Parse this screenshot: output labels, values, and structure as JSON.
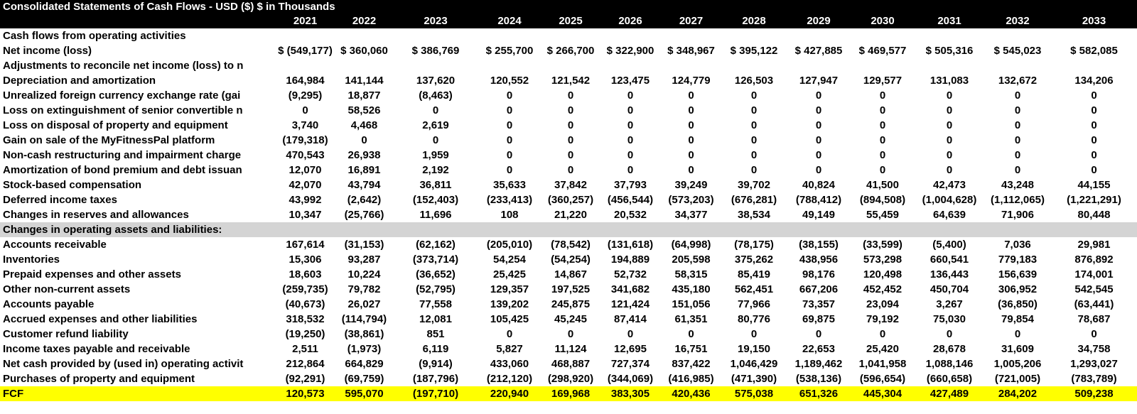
{
  "title": "Consolidated Statements of Cash Flows - USD ($) $ in Thousands",
  "years": [
    "2021",
    "2022",
    "2023",
    "2024",
    "2025",
    "2026",
    "2027",
    "2028",
    "2029",
    "2030",
    "2031",
    "2032",
    "2033"
  ],
  "rows": [
    {
      "label": "Cash flows from operating activities",
      "values": [
        "",
        "",
        "",
        "",
        "",
        "",
        "",
        "",
        "",
        "",
        "",
        "",
        ""
      ]
    },
    {
      "label": "Net income (loss)",
      "values": [
        "$ (549,177)",
        "$ 360,060",
        "$ 386,769",
        "$ 255,700",
        "$ 266,700",
        "$ 322,900",
        "$ 348,967",
        "$ 395,122",
        "$ 427,885",
        "$ 469,577",
        "$ 505,316",
        "$ 545,023",
        "$ 582,085"
      ]
    },
    {
      "label": "Adjustments to reconcile net income (loss) to n",
      "values": [
        "",
        "",
        "",
        "",
        "",
        "",
        "",
        "",
        "",
        "",
        "",
        "",
        ""
      ]
    },
    {
      "label": "Depreciation and amortization",
      "values": [
        "164,984",
        "141,144",
        "137,620",
        "120,552",
        "121,542",
        "123,475",
        "124,779",
        "126,503",
        "127,947",
        "129,577",
        "131,083",
        "132,672",
        "134,206"
      ]
    },
    {
      "label": "Unrealized foreign currency exchange rate (gai",
      "values": [
        "(9,295)",
        "18,877",
        "(8,463)",
        "0",
        "0",
        "0",
        "0",
        "0",
        "0",
        "0",
        "0",
        "0",
        "0"
      ]
    },
    {
      "label": "Loss on extinguishment of senior convertible n",
      "values": [
        "0",
        "58,526",
        "0",
        "0",
        "0",
        "0",
        "0",
        "0",
        "0",
        "0",
        "0",
        "0",
        "0"
      ]
    },
    {
      "label": "Loss on disposal of property and equipment",
      "values": [
        "3,740",
        "4,468",
        "2,619",
        "0",
        "0",
        "0",
        "0",
        "0",
        "0",
        "0",
        "0",
        "0",
        "0"
      ]
    },
    {
      "label": "Gain on sale of the MyFitnessPal platform",
      "values": [
        "(179,318)",
        "0",
        "0",
        "0",
        "0",
        "0",
        "0",
        "0",
        "0",
        "0",
        "0",
        "0",
        "0"
      ]
    },
    {
      "label": "Non-cash restructuring and impairment charge",
      "values": [
        "470,543",
        "26,938",
        "1,959",
        "0",
        "0",
        "0",
        "0",
        "0",
        "0",
        "0",
        "0",
        "0",
        "0"
      ]
    },
    {
      "label": "Amortization of bond premium and debt issuan",
      "values": [
        "12,070",
        "16,891",
        "2,192",
        "0",
        "0",
        "0",
        "0",
        "0",
        "0",
        "0",
        "0",
        "0",
        "0"
      ]
    },
    {
      "label": "Stock-based compensation",
      "values": [
        "42,070",
        "43,794",
        "36,811",
        "35,633",
        "37,842",
        "37,793",
        "39,249",
        "39,702",
        "40,824",
        "41,500",
        "42,473",
        "43,248",
        "44,155"
      ]
    },
    {
      "label": "Deferred income taxes",
      "values": [
        "43,992",
        "(2,642)",
        "(152,403)",
        "(233,413)",
        "(360,257)",
        "(456,544)",
        "(573,203)",
        "(676,281)",
        "(788,412)",
        "(894,508)",
        "(1,004,628)",
        "(1,112,065)",
        "(1,221,291)"
      ]
    },
    {
      "label": "Changes in reserves and allowances",
      "values": [
        "10,347",
        "(25,766)",
        "11,696",
        "108",
        "21,220",
        "20,532",
        "34,377",
        "38,534",
        "49,149",
        "55,459",
        "64,639",
        "71,906",
        "80,448"
      ]
    },
    {
      "label": "Changes in operating assets and liabilities:",
      "values": [
        "",
        "",
        "",
        "",
        "",
        "",
        "",
        "",
        "",
        "",
        "",
        "",
        ""
      ],
      "style": "grey"
    },
    {
      "label": "Accounts receivable",
      "values": [
        "167,614",
        "(31,153)",
        "(62,162)",
        "(205,010)",
        "(78,542)",
        "(131,618)",
        "(64,998)",
        "(78,175)",
        "(38,155)",
        "(33,599)",
        "(5,400)",
        "7,036",
        "29,981"
      ]
    },
    {
      "label": "Inventories",
      "values": [
        "15,306",
        "93,287",
        "(373,714)",
        "54,254",
        "(54,254)",
        "194,889",
        "205,598",
        "375,262",
        "438,956",
        "573,298",
        "660,541",
        "779,183",
        "876,892"
      ]
    },
    {
      "label": "Prepaid expenses and other assets",
      "values": [
        "18,603",
        "10,224",
        "(36,652)",
        "25,425",
        "14,867",
        "52,732",
        "58,315",
        "85,419",
        "98,176",
        "120,498",
        "136,443",
        "156,639",
        "174,001"
      ]
    },
    {
      "label": "Other non-current assets",
      "values": [
        "(259,735)",
        "79,782",
        "(52,795)",
        "129,357",
        "197,525",
        "341,682",
        "435,180",
        "562,451",
        "667,206",
        "452,452",
        "450,704",
        "306,952",
        "542,545"
      ]
    },
    {
      "label": "Accounts payable",
      "values": [
        "(40,673)",
        "26,027",
        "77,558",
        "139,202",
        "245,875",
        "121,424",
        "151,056",
        "77,966",
        "73,357",
        "23,094",
        "3,267",
        "(36,850)",
        "(63,441)"
      ]
    },
    {
      "label": "Accrued expenses and other liabilities",
      "values": [
        "318,532",
        "(114,794)",
        "12,081",
        "105,425",
        "45,245",
        "87,414",
        "61,351",
        "80,776",
        "69,875",
        "79,192",
        "75,030",
        "79,854",
        "78,687"
      ]
    },
    {
      "label": "Customer refund liability",
      "values": [
        "(19,250)",
        "(38,861)",
        "851",
        "0",
        "0",
        "0",
        "0",
        "0",
        "0",
        "0",
        "0",
        "0",
        "0"
      ]
    },
    {
      "label": "Income taxes payable and receivable",
      "values": [
        "2,511",
        "(1,973)",
        "6,119",
        "5,827",
        "11,124",
        "12,695",
        "16,751",
        "19,150",
        "22,653",
        "25,420",
        "28,678",
        "31,609",
        "34,758"
      ]
    },
    {
      "label": "Net cash provided by (used in) operating activit",
      "values": [
        "212,864",
        "664,829",
        "(9,914)",
        "433,060",
        "468,887",
        "727,374",
        "837,422",
        "1,046,429",
        "1,189,462",
        "1,041,958",
        "1,088,146",
        "1,005,206",
        "1,293,027"
      ]
    },
    {
      "label": "Purchases of property and equipment",
      "values": [
        "(92,291)",
        "(69,759)",
        "(187,796)",
        "(212,120)",
        "(298,920)",
        "(344,069)",
        "(416,985)",
        "(471,390)",
        "(538,136)",
        "(596,654)",
        "(660,658)",
        "(721,005)",
        "(783,789)"
      ]
    },
    {
      "label": "FCF",
      "values": [
        "120,573",
        "595,070",
        "(197,710)",
        "220,940",
        "169,968",
        "383,305",
        "420,436",
        "575,038",
        "651,326",
        "445,304",
        "427,489",
        "284,202",
        "509,238"
      ],
      "style": "yellow"
    }
  ]
}
